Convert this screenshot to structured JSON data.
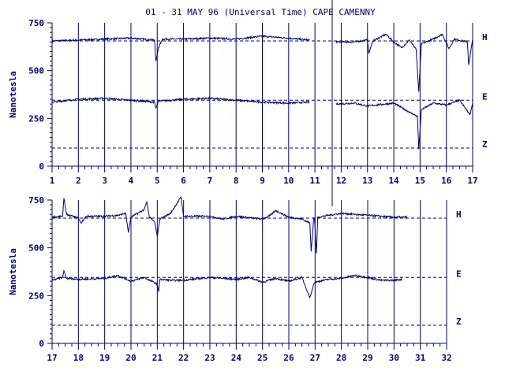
{
  "title": "01 - 31 MAY 96 (Universal Time) CAPE CAMENNY",
  "colors": {
    "ink": "#000080",
    "background": "#ffffff"
  },
  "chart_data": [
    {
      "type": "line",
      "ylabel": "Nanotesla",
      "ylim": [
        0,
        750
      ],
      "yticks": [
        0,
        250,
        500,
        750
      ],
      "xlim": [
        1,
        17
      ],
      "xticks": [
        "1",
        "2",
        "3",
        "4",
        "5",
        "6",
        "7",
        "8",
        "9",
        "10",
        "11",
        "12",
        "13",
        "14",
        "15",
        "16",
        "17"
      ],
      "gaps": [
        [
          10.8,
          11.8
        ]
      ],
      "series": [
        {
          "name": "H",
          "baseline": 655,
          "points": [
            [
              1,
              655
            ],
            [
              2,
              660
            ],
            [
              3,
              665
            ],
            [
              4,
              670
            ],
            [
              4.9,
              660
            ],
            [
              4.95,
              550
            ],
            [
              5.05,
              620
            ],
            [
              5.2,
              665
            ],
            [
              6,
              665
            ],
            [
              7,
              670
            ],
            [
              8,
              665
            ],
            [
              9,
              680
            ],
            [
              10,
              670
            ],
            [
              10.8,
              660
            ],
            [
              11.8,
              650
            ],
            [
              12.5,
              650
            ],
            [
              13,
              660
            ],
            [
              13.05,
              590
            ],
            [
              13.2,
              655
            ],
            [
              13.7,
              690
            ],
            [
              14,
              650
            ],
            [
              14.3,
              620
            ],
            [
              14.6,
              660
            ],
            [
              14.85,
              610
            ],
            [
              14.95,
              390
            ],
            [
              15.05,
              640
            ],
            [
              15.5,
              665
            ],
            [
              15.85,
              690
            ],
            [
              16.1,
              615
            ],
            [
              16.3,
              665
            ],
            [
              16.8,
              650
            ],
            [
              16.85,
              530
            ],
            [
              17,
              665
            ]
          ]
        },
        {
          "name": "E",
          "baseline": 345,
          "points": [
            [
              1,
              335
            ],
            [
              2,
              350
            ],
            [
              3,
              355
            ],
            [
              4,
              345
            ],
            [
              4.9,
              335
            ],
            [
              4.95,
              305
            ],
            [
              5.05,
              340
            ],
            [
              6,
              350
            ],
            [
              7,
              355
            ],
            [
              8,
              345
            ],
            [
              9,
              335
            ],
            [
              10,
              330
            ],
            [
              10.8,
              335
            ],
            [
              11.8,
              325
            ],
            [
              12.5,
              330
            ],
            [
              13,
              315
            ],
            [
              14,
              330
            ],
            [
              14.5,
              290
            ],
            [
              14.9,
              260
            ],
            [
              14.95,
              90
            ],
            [
              15.05,
              295
            ],
            [
              15.5,
              330
            ],
            [
              16,
              320
            ],
            [
              16.5,
              345
            ],
            [
              16.9,
              270
            ],
            [
              17,
              330
            ]
          ]
        },
        {
          "name": "Z",
          "baseline": 95,
          "points": []
        }
      ]
    },
    {
      "type": "line",
      "ylabel": "Nanotesla",
      "ylim": [
        0,
        750
      ],
      "yticks": [
        0,
        250,
        500,
        750
      ],
      "xlim": [
        17,
        32
      ],
      "xticks": [
        "17",
        "18",
        "19",
        "20",
        "21",
        "22",
        "23",
        "24",
        "25",
        "26",
        "27",
        "28",
        "29",
        "30",
        "31",
        "32"
      ],
      "gaps": [],
      "series": [
        {
          "name": "H",
          "baseline": 655,
          "points": [
            [
              17,
              660
            ],
            [
              17.4,
              665
            ],
            [
              17.45,
              760
            ],
            [
              17.55,
              675
            ],
            [
              18,
              655
            ],
            [
              18.1,
              630
            ],
            [
              18.3,
              665
            ],
            [
              19,
              665
            ],
            [
              19.5,
              670
            ],
            [
              19.8,
              680
            ],
            [
              19.9,
              580
            ],
            [
              20,
              660
            ],
            [
              20.5,
              700
            ],
            [
              20.6,
              740
            ],
            [
              20.7,
              660
            ],
            [
              20.9,
              635
            ],
            [
              21,
              560
            ],
            [
              21.1,
              650
            ],
            [
              21.5,
              680
            ],
            [
              21.9,
              765
            ],
            [
              22,
              665
            ],
            [
              23,
              665
            ],
            [
              23.5,
              650
            ],
            [
              24,
              665
            ],
            [
              25,
              650
            ],
            [
              25.3,
              670
            ],
            [
              25.5,
              695
            ],
            [
              26,
              660
            ],
            [
              26.5,
              650
            ],
            [
              26.8,
              630
            ],
            [
              26.85,
              480
            ],
            [
              26.95,
              660
            ],
            [
              26.98,
              640
            ],
            [
              27.05,
              470
            ],
            [
              27.1,
              660
            ],
            [
              27.5,
              670
            ],
            [
              28,
              680
            ],
            [
              29,
              670
            ],
            [
              29.5,
              665
            ],
            [
              30,
              660
            ],
            [
              30.5,
              660
            ]
          ]
        },
        {
          "name": "E",
          "baseline": 345,
          "points": [
            [
              17,
              330
            ],
            [
              17.4,
              345
            ],
            [
              17.45,
              380
            ],
            [
              17.55,
              340
            ],
            [
              18,
              335
            ],
            [
              19,
              340
            ],
            [
              19.5,
              355
            ],
            [
              20,
              325
            ],
            [
              20.5,
              345
            ],
            [
              21,
              310
            ],
            [
              21.05,
              270
            ],
            [
              21.1,
              335
            ],
            [
              21.5,
              330
            ],
            [
              22,
              330
            ],
            [
              23,
              345
            ],
            [
              24,
              335
            ],
            [
              24.5,
              345
            ],
            [
              25,
              320
            ],
            [
              25.5,
              340
            ],
            [
              26,
              325
            ],
            [
              26.5,
              345
            ],
            [
              26.8,
              240
            ],
            [
              26.85,
              260
            ],
            [
              26.95,
              310
            ],
            [
              27,
              320
            ],
            [
              27.5,
              335
            ],
            [
              28,
              340
            ],
            [
              28.5,
              355
            ],
            [
              29,
              345
            ],
            [
              29.5,
              330
            ],
            [
              30,
              330
            ],
            [
              30.3,
              335
            ]
          ]
        },
        {
          "name": "Z",
          "baseline": 95,
          "points": []
        }
      ]
    }
  ]
}
